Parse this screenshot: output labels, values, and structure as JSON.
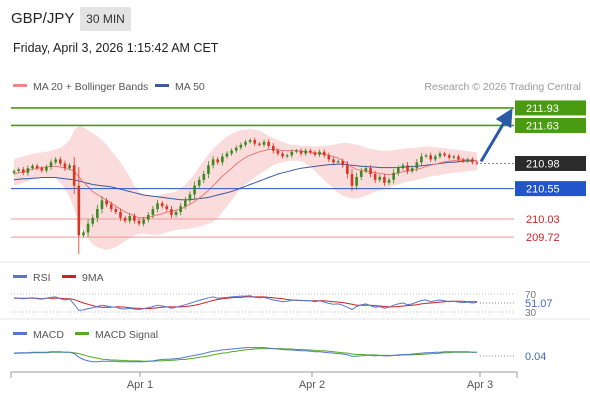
{
  "header": {
    "symbol": "GBP/JPY",
    "timeframe": "30 MIN",
    "datetime": "Friday, April 3, 2026 1:15:42 AM CET"
  },
  "colors": {
    "resistance": "#4a9a12",
    "support": "#ee8888",
    "pivot": "#2255cc",
    "bull": "#3a8a22",
    "bear": "#dd3322",
    "bollinger_fill": "#fbdcdc",
    "ma20": "#ee7777",
    "ma50": "#3c5a9c",
    "arrow": "#2a5aa8",
    "rsi": "#5577cc",
    "rsi_ma": "#cc2222",
    "macd": "#5577cc",
    "macd_signal": "#55aa22"
  },
  "chart_data": [
    {
      "type": "candlestick",
      "legend": [
        {
          "name": "MA 20 + Bollinger Bands",
          "color": "#ee8888"
        },
        {
          "name": "MA 50",
          "color": "#3c5a9c"
        }
      ],
      "credit": "Research © 2026 Trading Central",
      "ylim": [
        209.5,
        212.1
      ],
      "levels": [
        {
          "label": "211.93",
          "value": 211.93,
          "kind": "resistance"
        },
        {
          "label": "211.63",
          "value": 211.63,
          "kind": "resistance"
        },
        {
          "label": "210.98",
          "value": 210.98,
          "kind": "last"
        },
        {
          "label": "210.55",
          "value": 210.55,
          "kind": "pivot"
        },
        {
          "label": "210.03",
          "value": 210.03,
          "kind": "support"
        },
        {
          "label": "209.72",
          "value": 209.72,
          "kind": "support"
        }
      ],
      "arrow": {
        "from": 210.98,
        "to": 211.93
      },
      "close": [
        210.85,
        210.88,
        210.82,
        210.9,
        210.94,
        210.9,
        210.86,
        210.92,
        211.0,
        211.05,
        210.98,
        210.9,
        210.95,
        210.6,
        209.75,
        209.8,
        209.95,
        210.05,
        210.2,
        210.35,
        210.28,
        210.2,
        210.15,
        210.05,
        210.0,
        210.08,
        210.0,
        209.95,
        210.02,
        210.1,
        210.2,
        210.3,
        210.25,
        210.2,
        210.1,
        210.15,
        210.25,
        210.35,
        210.45,
        210.6,
        210.7,
        210.8,
        210.95,
        211.05,
        211.0,
        211.1,
        211.15,
        211.2,
        211.25,
        211.3,
        211.35,
        211.38,
        211.32,
        211.3,
        211.35,
        211.28,
        211.2,
        211.15,
        211.1,
        211.12,
        211.18,
        211.2,
        211.15,
        211.2,
        211.17,
        211.13,
        211.18,
        211.12,
        211.05,
        211.0,
        211.02,
        210.95,
        210.8,
        210.6,
        210.75,
        210.85,
        210.9,
        210.8,
        210.7,
        210.75,
        210.65,
        210.7,
        210.82,
        210.9,
        210.95,
        210.85,
        210.9,
        211.0,
        211.1,
        211.12,
        211.05,
        211.1,
        211.15,
        211.12,
        211.08,
        211.1,
        211.05,
        211.02,
        211.05,
        211.0,
        210.98
      ],
      "ma20": [
        210.8,
        210.82,
        210.84,
        210.86,
        210.88,
        210.9,
        210.91,
        210.92,
        210.93,
        210.93,
        210.92,
        210.9,
        210.88,
        210.85,
        210.75,
        210.66,
        210.58,
        210.5,
        210.45,
        210.4,
        210.35,
        210.3,
        210.25,
        210.2,
        210.15,
        210.12,
        210.08,
        210.05,
        210.05,
        210.06,
        210.08,
        210.1,
        210.12,
        210.15,
        210.16,
        210.18,
        210.2,
        210.24,
        210.28,
        210.33,
        210.39,
        210.45,
        210.52,
        210.6,
        210.68,
        210.76,
        210.83,
        210.9,
        210.97,
        211.03,
        211.08,
        211.12,
        211.15,
        211.18,
        211.2,
        211.22,
        211.22,
        211.21,
        211.2,
        211.2,
        211.2,
        211.2,
        211.19,
        211.18,
        211.17,
        211.16,
        211.15,
        211.14,
        211.12,
        211.1,
        211.07,
        211.03,
        210.98,
        210.92,
        210.88,
        210.86,
        210.85,
        210.83,
        210.82,
        210.81,
        210.8,
        210.79,
        210.8,
        210.82,
        210.84,
        210.85,
        210.86,
        210.88,
        210.9,
        210.93,
        210.95,
        210.97,
        210.99,
        211.01,
        211.02,
        211.03,
        211.04,
        211.04,
        211.04,
        211.04,
        211.03
      ],
      "bb_upper": [
        211.05,
        211.08,
        211.1,
        211.12,
        211.14,
        211.16,
        211.17,
        211.18,
        211.2,
        211.22,
        211.25,
        211.3,
        211.38,
        211.55,
        211.62,
        211.6,
        211.55,
        211.5,
        211.45,
        211.38,
        211.3,
        211.2,
        211.1,
        211.0,
        210.88,
        210.75,
        210.6,
        210.5,
        210.45,
        210.42,
        210.42,
        210.43,
        210.45,
        210.47,
        210.48,
        210.5,
        210.55,
        210.62,
        210.7,
        210.8,
        210.92,
        211.03,
        211.14,
        211.23,
        211.3,
        211.38,
        211.44,
        211.49,
        211.52,
        211.55,
        211.56,
        211.57,
        211.56,
        211.54,
        211.5,
        211.45,
        211.42,
        211.38,
        211.35,
        211.32,
        211.3,
        211.3,
        211.28,
        211.28,
        211.28,
        211.27,
        211.28,
        211.28,
        211.29,
        211.3,
        211.32,
        211.33,
        211.33,
        211.32,
        211.3,
        211.28,
        211.25,
        211.23,
        211.22,
        211.2,
        211.2,
        211.2,
        211.21,
        211.22,
        211.23,
        211.24,
        211.25,
        211.25,
        211.26,
        211.27,
        211.27,
        211.26,
        211.25,
        211.24,
        211.23,
        211.22,
        211.21,
        211.2,
        211.19,
        211.18,
        211.17
      ],
      "bb_lower": [
        210.6,
        210.62,
        210.65,
        210.68,
        210.7,
        210.72,
        210.74,
        210.75,
        210.75,
        210.72,
        210.65,
        210.55,
        210.4,
        210.2,
        210.0,
        209.82,
        209.7,
        209.6,
        209.55,
        209.52,
        209.5,
        209.52,
        209.55,
        209.6,
        209.65,
        209.7,
        209.75,
        209.78,
        209.78,
        209.77,
        209.76,
        209.76,
        209.78,
        209.8,
        209.82,
        209.84,
        209.85,
        209.86,
        209.87,
        209.88,
        209.9,
        209.92,
        209.95,
        209.98,
        210.05,
        210.15,
        210.25,
        210.35,
        210.45,
        210.55,
        210.62,
        210.68,
        210.74,
        210.8,
        210.85,
        210.9,
        210.95,
        210.98,
        211.0,
        211.02,
        211.03,
        211.03,
        211.02,
        210.98,
        210.92,
        210.85,
        210.77,
        210.7,
        210.62,
        210.55,
        210.48,
        210.43,
        210.4,
        210.38,
        210.38,
        210.4,
        210.43,
        210.46,
        210.5,
        210.52,
        210.54,
        210.56,
        210.6,
        210.62,
        210.65,
        210.67,
        210.68,
        210.7,
        210.72,
        210.74,
        210.76,
        210.77,
        210.78,
        210.8,
        210.81,
        210.82,
        210.83,
        210.84,
        210.85,
        210.86,
        210.86
      ],
      "ma50": [
        210.7,
        210.71,
        210.72,
        210.72,
        210.73,
        210.73,
        210.74,
        210.74,
        210.74,
        210.74,
        210.73,
        210.72,
        210.71,
        210.7,
        210.68,
        210.66,
        210.64,
        210.62,
        210.61,
        210.6,
        210.59,
        210.58,
        210.56,
        210.54,
        210.52,
        210.5,
        210.48,
        210.46,
        210.44,
        210.43,
        210.42,
        210.41,
        210.4,
        210.39,
        210.38,
        210.37,
        210.36,
        210.36,
        210.36,
        210.37,
        210.38,
        210.39,
        210.4,
        210.42,
        210.44,
        210.46,
        210.48,
        210.5,
        210.53,
        210.56,
        210.59,
        210.62,
        210.65,
        210.68,
        210.71,
        210.74,
        210.77,
        210.8,
        210.82,
        210.84,
        210.86,
        210.88,
        210.9,
        210.91,
        210.92,
        210.93,
        210.94,
        210.95,
        210.96,
        210.96,
        210.97,
        210.97,
        210.96,
        210.95,
        210.94,
        210.93,
        210.93,
        210.92,
        210.92,
        210.91,
        210.91,
        210.91,
        210.91,
        210.91,
        210.92,
        210.92,
        210.93,
        210.93,
        210.94,
        210.95,
        210.96,
        210.97,
        210.98,
        210.99,
        211.0,
        211.0,
        211.01,
        211.02,
        211.02,
        211.03,
        211.03
      ]
    },
    {
      "type": "line",
      "series": [
        {
          "name": "RSI"
        },
        {
          "name": "9MA"
        }
      ],
      "ylim": [
        20,
        80
      ],
      "ticks": [
        "70",
        "30"
      ],
      "value_label": "51.07",
      "rsi": [
        62,
        61,
        60,
        61,
        62,
        60,
        59,
        61,
        63,
        64,
        60,
        57,
        59,
        47,
        33,
        34,
        37,
        39,
        42,
        45,
        43,
        41,
        40,
        37,
        36,
        38,
        36,
        35,
        37,
        39,
        42,
        45,
        43,
        41,
        38,
        40,
        43,
        46,
        49,
        53,
        56,
        59,
        62,
        64,
        61,
        62,
        63,
        64,
        65,
        66,
        66,
        67,
        63,
        62,
        63,
        60,
        57,
        55,
        53,
        54,
        56,
        57,
        55,
        56,
        55,
        53,
        55,
        52,
        49,
        47,
        48,
        45,
        40,
        35,
        42,
        46,
        48,
        44,
        40,
        42,
        38,
        40,
        45,
        48,
        50,
        46,
        48,
        52,
        56,
        57,
        53,
        55,
        57,
        55,
        53,
        54,
        52,
        51,
        52,
        50,
        51.07
      ],
      "rsi_ma": [
        61,
        61,
        61,
        61,
        61,
        61,
        60,
        61,
        61,
        61,
        61,
        60,
        60,
        58,
        54,
        50,
        47,
        44,
        41,
        40,
        40,
        40,
        41,
        41,
        40,
        39,
        38,
        38,
        37,
        37,
        38,
        39,
        40,
        41,
        41,
        41,
        41,
        42,
        43,
        45,
        47,
        50,
        53,
        56,
        58,
        60,
        61,
        62,
        63,
        63,
        64,
        64,
        64,
        64,
        64,
        63,
        62,
        61,
        60,
        58,
        57,
        56,
        56,
        55,
        55,
        55,
        55,
        55,
        54,
        53,
        52,
        51,
        49,
        47,
        45,
        45,
        45,
        45,
        44,
        43,
        42,
        41,
        41,
        42,
        43,
        44,
        45,
        46,
        48,
        49,
        50,
        51,
        52,
        53,
        54,
        54,
        54,
        54,
        53,
        53,
        53
      ]
    },
    {
      "type": "line",
      "series": [
        {
          "name": "MACD"
        },
        {
          "name": "MACD Signal"
        }
      ],
      "ylim": [
        -0.35,
        0.22
      ],
      "value_label": "0.04",
      "macd": [
        0.02,
        0.03,
        0.03,
        0.03,
        0.04,
        0.04,
        0.04,
        0.04,
        0.05,
        0.05,
        0.05,
        0.04,
        0.04,
        0.01,
        -0.07,
        -0.12,
        -0.15,
        -0.17,
        -0.17,
        -0.16,
        -0.16,
        -0.16,
        -0.16,
        -0.17,
        -0.17,
        -0.17,
        -0.17,
        -0.17,
        -0.17,
        -0.16,
        -0.15,
        -0.13,
        -0.12,
        -0.11,
        -0.11,
        -0.1,
        -0.09,
        -0.07,
        -0.05,
        -0.03,
        -0.01,
        0.01,
        0.04,
        0.06,
        0.07,
        0.09,
        0.1,
        0.11,
        0.12,
        0.13,
        0.14,
        0.14,
        0.14,
        0.14,
        0.14,
        0.13,
        0.12,
        0.11,
        0.1,
        0.09,
        0.09,
        0.08,
        0.07,
        0.07,
        0.06,
        0.05,
        0.05,
        0.04,
        0.03,
        0.02,
        0.01,
        0.0,
        -0.02,
        -0.05,
        -0.05,
        -0.04,
        -0.03,
        -0.03,
        -0.04,
        -0.03,
        -0.04,
        -0.04,
        -0.03,
        -0.02,
        -0.01,
        -0.01,
        0.0,
        0.01,
        0.02,
        0.03,
        0.03,
        0.04,
        0.04,
        0.05,
        0.05,
        0.05,
        0.05,
        0.05,
        0.05,
        0.04,
        0.04
      ],
      "macd_signal": [
        0.01,
        0.02,
        0.02,
        0.02,
        0.03,
        0.03,
        0.03,
        0.03,
        0.04,
        0.04,
        0.04,
        0.04,
        0.04,
        0.03,
        0.01,
        -0.02,
        -0.05,
        -0.07,
        -0.09,
        -0.11,
        -0.12,
        -0.13,
        -0.13,
        -0.14,
        -0.14,
        -0.15,
        -0.15,
        -0.15,
        -0.16,
        -0.16,
        -0.16,
        -0.15,
        -0.15,
        -0.14,
        -0.14,
        -0.13,
        -0.12,
        -0.12,
        -0.1,
        -0.09,
        -0.07,
        -0.06,
        -0.04,
        -0.02,
        0.0,
        0.02,
        0.03,
        0.05,
        0.06,
        0.08,
        0.09,
        0.1,
        0.11,
        0.12,
        0.12,
        0.12,
        0.12,
        0.12,
        0.12,
        0.11,
        0.11,
        0.1,
        0.1,
        0.09,
        0.09,
        0.08,
        0.07,
        0.07,
        0.06,
        0.05,
        0.04,
        0.03,
        0.02,
        0.0,
        -0.01,
        -0.01,
        -0.02,
        -0.02,
        -0.02,
        -0.03,
        -0.03,
        -0.03,
        -0.03,
        -0.03,
        -0.02,
        -0.02,
        -0.02,
        -0.01,
        -0.01,
        0.0,
        0.01,
        0.01,
        0.02,
        0.03,
        0.03,
        0.04,
        0.04,
        0.04,
        0.04,
        0.04,
        0.04
      ]
    }
  ],
  "x_axis": {
    "labels": [
      "Apr 1",
      "Apr 2",
      "Apr 3"
    ]
  }
}
